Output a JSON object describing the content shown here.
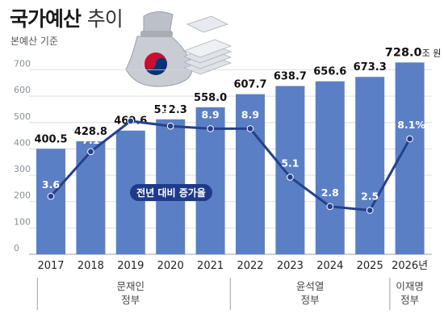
{
  "header": {
    "title_bold": "국가예산",
    "title_light": "추이",
    "subtitle": "본예산 기준"
  },
  "colors": {
    "bar": "#5b7fc4",
    "line": "#24408e",
    "axis_text": "#8a8f99",
    "grid": "#d3d6dc",
    "label_box": "#1f3a8a"
  },
  "illustration": {
    "icon": "money-bag-with-taegeuk-and-cash-stack-icon"
  },
  "chart_data": {
    "type": "bar",
    "categories": [
      "2017",
      "2018",
      "2019",
      "2020",
      "2021",
      "2022",
      "2023",
      "2024",
      "2025",
      "2026년"
    ],
    "values": [
      400.5,
      428.8,
      469.6,
      512.3,
      558.0,
      607.7,
      638.7,
      656.6,
      673.3,
      728.0
    ],
    "value_labels": [
      "400.5",
      "428.8",
      "469.6",
      "512.3",
      "558.0",
      "607.7",
      "638.7",
      "656.6",
      "673.3",
      "728.0"
    ],
    "value_unit_last": "조 원",
    "yticks": [
      0,
      100,
      200,
      300,
      400,
      500,
      600,
      700
    ],
    "ylim": [
      0,
      750
    ],
    "grid": true,
    "line_series": {
      "name": "전년 대비 증가율",
      "values": [
        3.6,
        7.1,
        9.5,
        9.1,
        8.9,
        8.9,
        5.1,
        2.8,
        2.5,
        8.1
      ],
      "labels": [
        "3.6",
        "7.1",
        "9.5",
        "9.1",
        "8.9",
        "8.9",
        "5.1",
        "2.8",
        "2.5",
        "8.1%"
      ],
      "ylim": [
        0,
        14
      ]
    },
    "groups": [
      {
        "label_line1": "문재인",
        "label_line2": "정부",
        "start": 0,
        "end": 4
      },
      {
        "label_line1": "윤석열",
        "label_line2": "정부",
        "start": 5,
        "end": 8
      },
      {
        "label_line1": "이재명",
        "label_line2": "정부",
        "start": 9,
        "end": 9
      }
    ]
  }
}
